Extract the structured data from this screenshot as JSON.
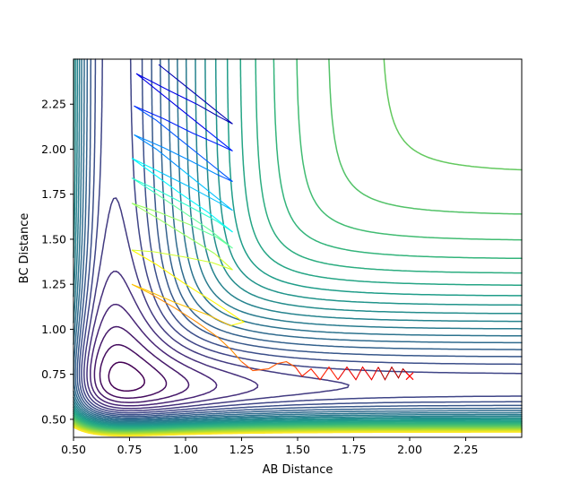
{
  "chart_data": {
    "type": "contour",
    "title": "",
    "xlabel": "AB Distance",
    "ylabel": "BC Distance",
    "xlim": [
      0.5,
      2.5
    ],
    "ylim": [
      0.4,
      2.5
    ],
    "xticks": [
      "0.50",
      "0.75",
      "1.00",
      "1.25",
      "1.50",
      "1.75",
      "2.00",
      "2.25"
    ],
    "yticks": [
      "0.50",
      "0.75",
      "1.00",
      "1.25",
      "1.50",
      "1.75",
      "2.00",
      "2.25"
    ],
    "grid": false,
    "legend": "none",
    "colormap": "viridis",
    "contour_levels": 30,
    "start_marker": {
      "x": 2.0,
      "y": 0.74,
      "symbol": "x",
      "color": "#ff0000"
    },
    "trajectory": {
      "colormap": "jet",
      "segments": 18,
      "points": [
        [
          2.0,
          0.74
        ],
        [
          1.97,
          0.78
        ],
        [
          1.95,
          0.73
        ],
        [
          1.92,
          0.79
        ],
        [
          1.89,
          0.72
        ],
        [
          1.86,
          0.79
        ],
        [
          1.83,
          0.72
        ],
        [
          1.79,
          0.79
        ],
        [
          1.76,
          0.72
        ],
        [
          1.72,
          0.79
        ],
        [
          1.68,
          0.72
        ],
        [
          1.64,
          0.79
        ],
        [
          1.6,
          0.72
        ],
        [
          1.56,
          0.78
        ],
        [
          1.52,
          0.74
        ],
        [
          1.49,
          0.79
        ],
        [
          1.45,
          0.82
        ],
        [
          1.41,
          0.81
        ],
        [
          1.37,
          0.78
        ],
        [
          1.3,
          0.77
        ],
        [
          1.25,
          0.82
        ],
        [
          1.2,
          0.89
        ],
        [
          1.14,
          0.96
        ],
        [
          1.05,
          1.04
        ],
        [
          0.95,
          1.12
        ],
        [
          0.84,
          1.2
        ],
        [
          0.76,
          1.25
        ],
        [
          0.82,
          1.22
        ],
        [
          0.95,
          1.15
        ],
        [
          1.1,
          1.08
        ],
        [
          1.2,
          1.02
        ],
        [
          1.26,
          1.04
        ],
        [
          1.14,
          1.14
        ],
        [
          1.0,
          1.25
        ],
        [
          0.87,
          1.36
        ],
        [
          0.76,
          1.44
        ],
        [
          0.86,
          1.43
        ],
        [
          1.0,
          1.4
        ],
        [
          1.12,
          1.37
        ],
        [
          1.21,
          1.33
        ],
        [
          1.13,
          1.42
        ],
        [
          1.0,
          1.52
        ],
        [
          0.87,
          1.62
        ],
        [
          0.76,
          1.7
        ],
        [
          0.88,
          1.65
        ],
        [
          1.02,
          1.58
        ],
        [
          1.14,
          1.51
        ],
        [
          1.21,
          1.45
        ],
        [
          1.11,
          1.55
        ],
        [
          0.98,
          1.66
        ],
        [
          0.86,
          1.76
        ],
        [
          0.76,
          1.84
        ],
        [
          0.88,
          1.77
        ],
        [
          1.02,
          1.68
        ],
        [
          1.14,
          1.6
        ],
        [
          1.21,
          1.54
        ],
        [
          1.1,
          1.65
        ],
        [
          0.97,
          1.76
        ],
        [
          0.86,
          1.86
        ],
        [
          0.76,
          1.95
        ],
        [
          0.89,
          1.87
        ],
        [
          1.02,
          1.79
        ],
        [
          1.14,
          1.71
        ],
        [
          1.21,
          1.66
        ],
        [
          1.1,
          1.77
        ],
        [
          0.98,
          1.89
        ],
        [
          0.87,
          2.0
        ],
        [
          0.77,
          2.08
        ],
        [
          0.9,
          2.01
        ],
        [
          1.03,
          1.93
        ],
        [
          1.14,
          1.86
        ],
        [
          1.21,
          1.82
        ],
        [
          1.1,
          1.93
        ],
        [
          0.98,
          2.05
        ],
        [
          0.87,
          2.16
        ],
        [
          0.77,
          2.24
        ],
        [
          0.9,
          2.17
        ],
        [
          1.03,
          2.09
        ],
        [
          1.14,
          2.03
        ],
        [
          1.21,
          1.99
        ],
        [
          1.1,
          2.1
        ],
        [
          0.98,
          2.22
        ],
        [
          0.87,
          2.33
        ],
        [
          0.78,
          2.42
        ],
        [
          0.92,
          2.33
        ],
        [
          1.05,
          2.25
        ],
        [
          1.15,
          2.18
        ],
        [
          1.21,
          2.14
        ],
        [
          1.1,
          2.25
        ],
        [
          0.98,
          2.37
        ],
        [
          0.88,
          2.47
        ]
      ]
    }
  }
}
